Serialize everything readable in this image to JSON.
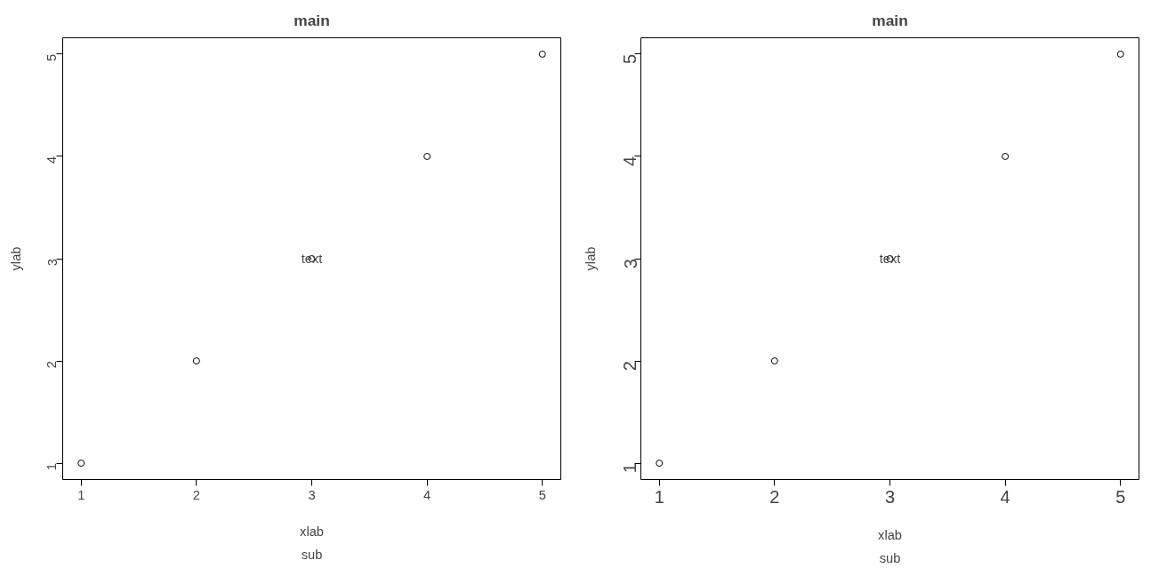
{
  "chart_data": [
    {
      "type": "scatter",
      "title": "main",
      "subtitle": "sub",
      "xlabel": "xlab",
      "ylabel": "ylab",
      "x": [
        1,
        2,
        3,
        4,
        5
      ],
      "series": [
        {
          "color": "#000000",
          "values": [
            1,
            2,
            3,
            4,
            5
          ]
        }
      ],
      "xlim": [
        0.84,
        5.16
      ],
      "ylim": [
        0.84,
        5.16
      ],
      "xticks": [
        1,
        2,
        3,
        4,
        5
      ],
      "yticks": [
        1,
        2,
        3,
        4,
        5
      ],
      "marker": "circle",
      "grid": false,
      "annotations": [
        {
          "text": "text",
          "x": 3,
          "y": 3
        }
      ]
    },
    {
      "type": "scatter",
      "title": "main",
      "subtitle": "sub",
      "xlabel": "xlab",
      "ylabel": "ylab",
      "x": [
        1,
        2,
        3,
        4,
        5
      ],
      "series": [
        {
          "color": "#000000",
          "values": [
            1,
            2,
            3,
            4,
            5
          ]
        }
      ],
      "xlim": [
        0.84,
        5.16
      ],
      "ylim": [
        0.84,
        5.16
      ],
      "xticks": [
        1,
        2,
        3,
        4,
        5
      ],
      "yticks": [
        1,
        2,
        3,
        4,
        5
      ],
      "marker": "circle",
      "grid": false,
      "annotations": [
        {
          "text": "text",
          "x": 3,
          "y": 3
        }
      ]
    }
  ]
}
